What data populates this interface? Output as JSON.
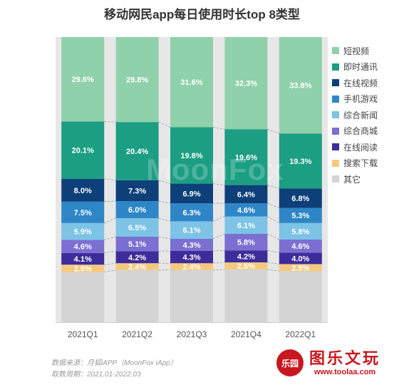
{
  "chart_data": {
    "type": "bar",
    "stacked": true,
    "normalized": true,
    "title": "移动网民app每日使用时长top 8类型",
    "categories": [
      "2021Q1",
      "2021Q2",
      "2021Q3",
      "2021Q4",
      "2022Q1"
    ],
    "series": [
      {
        "name": "其它",
        "color": "#d4d4d4",
        "values": [
          null,
          null,
          null,
          null,
          null
        ]
      },
      {
        "name": "搜索下载",
        "color": "#f5c97d",
        "values": [
          2.6,
          2.4,
          2.4,
          2.5,
          2.5
        ]
      },
      {
        "name": "在线阅读",
        "color": "#3d2c9a",
        "values": [
          4.1,
          4.2,
          4.3,
          4.2,
          4.0
        ]
      },
      {
        "name": "综合商城",
        "color": "#7b6fd1",
        "values": [
          4.6,
          5.1,
          4.3,
          5.8,
          4.6
        ]
      },
      {
        "name": "综合新闻",
        "color": "#7cc3e6",
        "values": [
          5.9,
          6.5,
          6.1,
          6.1,
          5.8
        ]
      },
      {
        "name": "手机游戏",
        "color": "#2e86c7",
        "values": [
          7.5,
          6.0,
          6.3,
          4.6,
          5.3
        ]
      },
      {
        "name": "在线视频",
        "color": "#0d3f79",
        "values": [
          8.0,
          7.3,
          6.9,
          6.4,
          6.8
        ]
      },
      {
        "name": "即时通讯",
        "color": "#1b9e82",
        "values": [
          20.1,
          20.4,
          19.8,
          19.6,
          19.3
        ]
      },
      {
        "name": "短视频",
        "color": "#8fd1aa",
        "values": [
          29.6,
          29.8,
          31.6,
          32.3,
          33.8
        ]
      }
    ],
    "value_suffix": "%",
    "legend_position": "right",
    "grid": false
  },
  "legend_order": [
    "短视频",
    "即时通讯",
    "在线视频",
    "手机游戏",
    "综合新闻",
    "综合商城",
    "在线阅读",
    "搜索下载",
    "其它"
  ],
  "watermark": "MoonFox",
  "footer": {
    "source": "数据来源：月狐iAPP（MoonFox iApp）",
    "period": "取数周期：2021.01-2022.03"
  },
  "brand": {
    "seal": "乐园",
    "name": "图乐文玩",
    "url": "www.toolaa.com"
  }
}
